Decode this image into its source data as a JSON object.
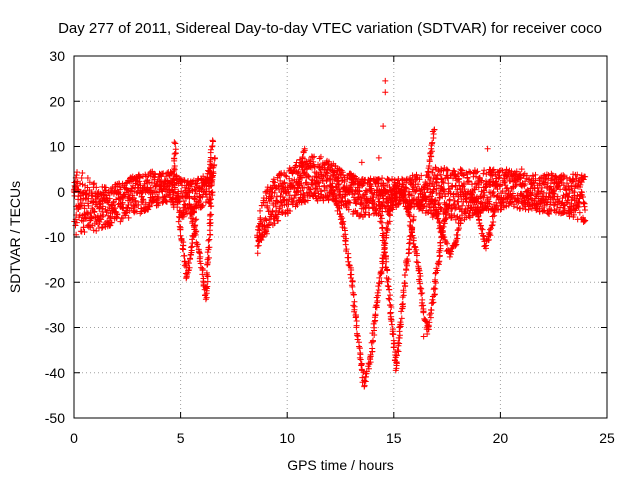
{
  "chart_data": {
    "type": "scatter",
    "title": "Day 277 of 2011, Sidereal Day-to-day VTEC variation (SDTVAR) for receiver coco",
    "xlabel": "GPS time / hours",
    "ylabel": "SDTVAR / TECUs",
    "xlim": [
      0,
      25
    ],
    "ylim": [
      -50,
      30
    ],
    "xticks": [
      0,
      5,
      10,
      15,
      20,
      25
    ],
    "yticks": [
      30,
      20,
      10,
      0,
      -10,
      -20,
      -30,
      -40,
      -50
    ],
    "grid": true,
    "marker": "+",
    "color": "#ff0000",
    "series": [
      {
        "name": "SDTVAR",
        "band_coarse": [
          [
            0.0,
            -9,
            5
          ],
          [
            0.5,
            -9,
            4
          ],
          [
            1.0,
            -9,
            2
          ],
          [
            1.5,
            -8,
            1
          ],
          [
            2.0,
            -7,
            2
          ],
          [
            2.5,
            -6,
            3
          ],
          [
            3.0,
            -5,
            4
          ],
          [
            3.5,
            -4,
            5
          ],
          [
            4.0,
            -3,
            4
          ],
          [
            4.5,
            -2,
            5
          ],
          [
            5.0,
            -6,
            3
          ],
          [
            5.5,
            -5,
            3
          ],
          [
            6.0,
            -4,
            3
          ],
          [
            6.5,
            -2,
            6
          ],
          [
            8.6,
            -14,
            -7
          ],
          [
            9.0,
            -10,
            1
          ],
          [
            9.5,
            -7,
            4
          ],
          [
            10.0,
            -5,
            5
          ],
          [
            10.5,
            -3,
            7
          ],
          [
            11.0,
            -2,
            8
          ],
          [
            11.5,
            -2,
            8
          ],
          [
            12.0,
            -2,
            7
          ],
          [
            12.5,
            -3,
            5
          ],
          [
            13.0,
            -5,
            4
          ],
          [
            13.5,
            -6,
            3
          ],
          [
            14.0,
            -5,
            3
          ],
          [
            14.5,
            -5,
            3
          ],
          [
            15.0,
            -4,
            3
          ],
          [
            15.5,
            -4,
            3
          ],
          [
            16.0,
            -4,
            4
          ],
          [
            16.5,
            -5,
            4
          ],
          [
            17.0,
            -6,
            6
          ],
          [
            17.5,
            -6,
            5
          ],
          [
            18.0,
            -7,
            5
          ],
          [
            18.5,
            -6,
            5
          ],
          [
            19.0,
            -5,
            5
          ],
          [
            19.5,
            -4,
            5
          ],
          [
            20.0,
            -4,
            5
          ],
          [
            20.5,
            -3,
            5
          ],
          [
            21.0,
            -4,
            4
          ],
          [
            21.5,
            -4,
            4
          ],
          [
            22.0,
            -5,
            4
          ],
          [
            22.5,
            -5,
            4
          ],
          [
            23.0,
            -5,
            4
          ],
          [
            23.5,
            -6,
            4
          ],
          [
            24.0,
            -7,
            4
          ]
        ],
        "arcs": [
          [
            [
              4.9,
              -5
            ],
            [
              5.1,
              -12
            ],
            [
              5.3,
              -19
            ],
            [
              5.5,
              -13
            ],
            [
              5.7,
              -6
            ]
          ],
          [
            [
              5.4,
              -3
            ],
            [
              5.7,
              -9
            ],
            [
              6.0,
              -17
            ],
            [
              6.2,
              -23.5
            ],
            [
              6.3,
              -15
            ],
            [
              6.4,
              -5
            ],
            [
              6.5,
              3
            ],
            [
              6.6,
              8
            ]
          ],
          [
            [
              12.0,
              2
            ],
            [
              12.6,
              -7
            ],
            [
              13.0,
              -18
            ],
            [
              13.3,
              -32
            ],
            [
              13.6,
              -42.5
            ],
            [
              13.9,
              -37
            ],
            [
              14.2,
              -25
            ],
            [
              14.5,
              -15
            ],
            [
              14.8,
              -5
            ],
            [
              15.1,
              1
            ]
          ],
          [
            [
              14.3,
              -2
            ],
            [
              14.6,
              -14
            ],
            [
              14.9,
              -28
            ],
            [
              15.1,
              -39
            ],
            [
              15.3,
              -30
            ],
            [
              15.6,
              -16
            ],
            [
              15.9,
              -6
            ]
          ],
          [
            [
              15.6,
              -2
            ],
            [
              15.9,
              -10
            ],
            [
              16.2,
              -18
            ],
            [
              16.4,
              -27
            ],
            [
              16.6,
              -31
            ],
            [
              16.9,
              -22
            ],
            [
              17.2,
              -11
            ],
            [
              17.5,
              -3
            ]
          ],
          [
            [
              16.8,
              -2
            ],
            [
              17.2,
              -8
            ],
            [
              17.6,
              -14
            ],
            [
              17.9,
              -11
            ],
            [
              18.2,
              -5
            ]
          ],
          [
            [
              18.6,
              0
            ],
            [
              19.0,
              -6
            ],
            [
              19.3,
              -12
            ],
            [
              19.5,
              -9
            ],
            [
              19.8,
              -3
            ]
          ],
          [
            [
              4.6,
              0
            ],
            [
              4.7,
              5
            ],
            [
              4.75,
              11
            ]
          ],
          [
            [
              6.3,
              2
            ],
            [
              6.4,
              6
            ],
            [
              6.5,
              11
            ]
          ],
          [
            [
              16.6,
              3
            ],
            [
              16.75,
              9
            ],
            [
              16.9,
              14
            ]
          ],
          [
            [
              10.5,
              0
            ],
            [
              10.7,
              5
            ],
            [
              10.8,
              10
            ]
          ]
        ],
        "outliers": [
          [
            14.6,
            24.5
          ],
          [
            14.6,
            22
          ],
          [
            14.5,
            14.5
          ],
          [
            14.3,
            7.5
          ],
          [
            13.5,
            6.5
          ],
          [
            19.4,
            9.5
          ],
          [
            21.0,
            5
          ],
          [
            16.4,
            -32
          ],
          [
            0.1,
            -9.5
          ]
        ]
      }
    ]
  }
}
